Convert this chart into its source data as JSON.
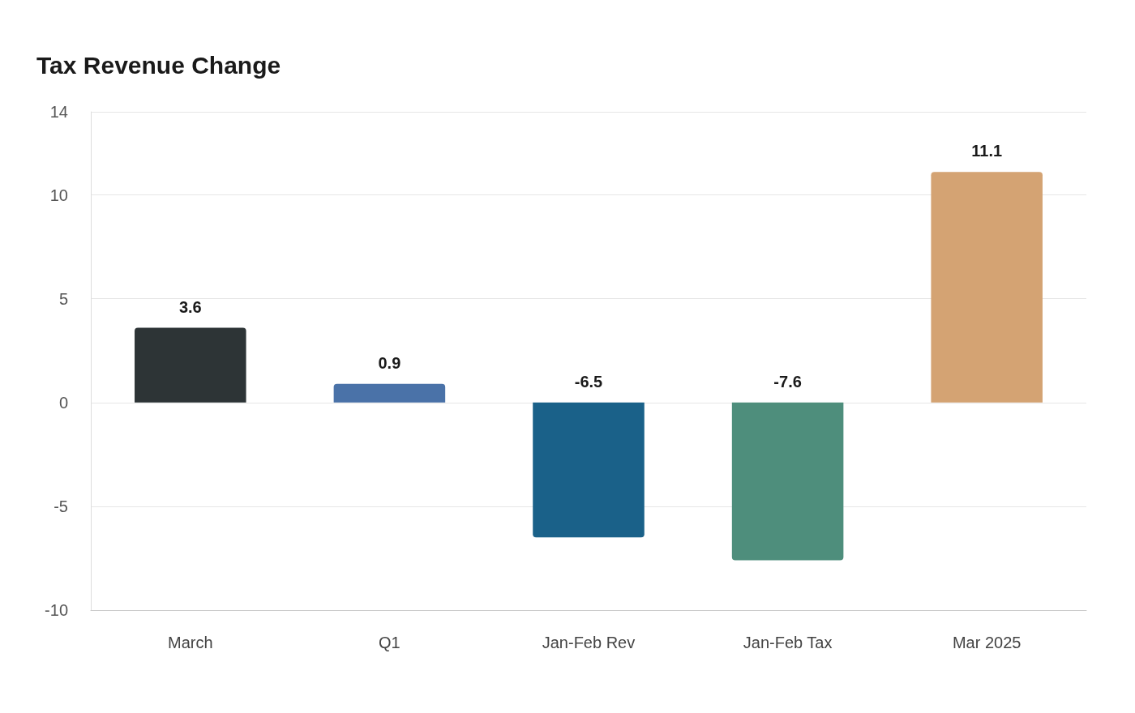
{
  "chart_data": {
    "type": "bar",
    "title": "Tax Revenue Change",
    "categories": [
      "March",
      "Q1",
      "Jan-Feb Rev",
      "Jan-Feb Tax",
      "Mar 2025"
    ],
    "values": [
      3.6,
      0.9,
      -6.5,
      -7.6,
      11.1
    ],
    "colors": [
      "#2d3436",
      "#4a72a8",
      "#1a6189",
      "#4e8e7c",
      "#d4a373"
    ],
    "ylim": [
      -10,
      14
    ],
    "yticks": [
      -10,
      -5,
      0,
      5,
      10,
      14
    ],
    "grid": "y",
    "data_labels": true
  }
}
